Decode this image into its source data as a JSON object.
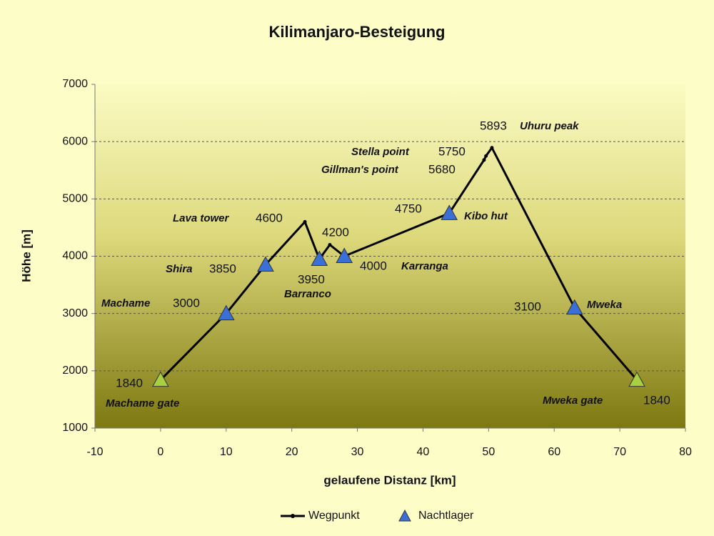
{
  "chart_data": {
    "type": "line",
    "title": "Kilimanjaro-Besteigung",
    "x_label": "gelaufene Distanz [km]",
    "y_label": "Höhe [m]",
    "xlim": [
      -10,
      80
    ],
    "xticks": [
      -10,
      0,
      10,
      20,
      30,
      40,
      50,
      60,
      70,
      80
    ],
    "ylim": [
      1000,
      7000
    ],
    "yticks": [
      1000,
      2000,
      3000,
      4000,
      5000,
      6000,
      7000
    ],
    "grid": true,
    "legend": "bottom",
    "series": [
      {
        "name": "Wegpunkt",
        "color": "#000000",
        "x": [
          0,
          10,
          16,
          22,
          24.2,
          25.8,
          28,
          44,
          49.3,
          49.6,
          50.5,
          63.1,
          72.6
        ],
        "values": [
          1840,
          3000,
          3850,
          4600,
          3950,
          4200,
          4000,
          4750,
          5680,
          5750,
          5893,
          3100,
          1840
        ],
        "point_labels": [
          "Machame gate",
          "Machame",
          "Shira",
          "Lava tower",
          "Barranco",
          null,
          "Karranga",
          "Kibo hut",
          "Gillman's point",
          "Stella point",
          "Uhuru peak",
          "Mweka",
          "Mweka gate"
        ]
      },
      {
        "name": "Nachtlager",
        "color": "#3a6fd8",
        "x": [
          0,
          10,
          16,
          24.2,
          28,
          44,
          63.1,
          72.6
        ],
        "values": [
          1840,
          3000,
          3850,
          3950,
          4000,
          4750,
          3100,
          1840
        ],
        "colors": [
          "#a8d040",
          "#3a6fd8",
          "#3a6fd8",
          "#3a6fd8",
          "#3a6fd8",
          "#3a6fd8",
          "#3a6fd8",
          "#a8d040"
        ]
      }
    ]
  }
}
